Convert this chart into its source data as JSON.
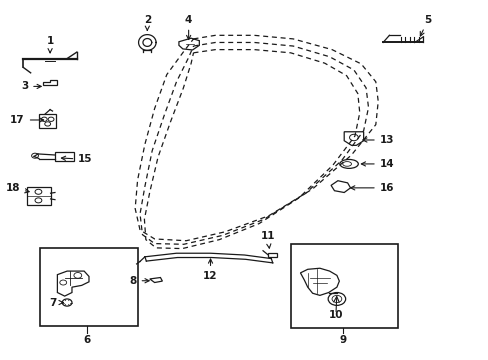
{
  "bg_color": "#ffffff",
  "line_color": "#1a1a1a",
  "fig_width": 4.89,
  "fig_height": 3.6,
  "dpi": 100,
  "door_outer": {
    "x": [
      0.395,
      0.44,
      0.52,
      0.6,
      0.68,
      0.74,
      0.77,
      0.775,
      0.77,
      0.72,
      0.64,
      0.55,
      0.46,
      0.38,
      0.315,
      0.285,
      0.275,
      0.28,
      0.295,
      0.315,
      0.34,
      0.375,
      0.395
    ],
    "y": [
      0.895,
      0.905,
      0.905,
      0.895,
      0.865,
      0.825,
      0.775,
      0.72,
      0.655,
      0.57,
      0.475,
      0.4,
      0.355,
      0.33,
      0.335,
      0.36,
      0.42,
      0.5,
      0.6,
      0.7,
      0.795,
      0.86,
      0.895
    ]
  },
  "door_mid": {
    "x": [
      0.395,
      0.44,
      0.52,
      0.6,
      0.675,
      0.725,
      0.75,
      0.755,
      0.745,
      0.7,
      0.625,
      0.54,
      0.455,
      0.375,
      0.315,
      0.29,
      0.285,
      0.295,
      0.31,
      0.335,
      0.36,
      0.385,
      0.395
    ],
    "y": [
      0.875,
      0.885,
      0.885,
      0.875,
      0.845,
      0.808,
      0.758,
      0.703,
      0.638,
      0.555,
      0.462,
      0.39,
      0.345,
      0.32,
      0.322,
      0.347,
      0.405,
      0.482,
      0.582,
      0.682,
      0.775,
      0.843,
      0.875
    ]
  },
  "door_inner": {
    "x": [
      0.395,
      0.44,
      0.52,
      0.595,
      0.665,
      0.71,
      0.733,
      0.737,
      0.727,
      0.682,
      0.612,
      0.53,
      0.448,
      0.372,
      0.318,
      0.297,
      0.294,
      0.305,
      0.322,
      0.348,
      0.374,
      0.39,
      0.395
    ],
    "y": [
      0.856,
      0.865,
      0.865,
      0.856,
      0.827,
      0.792,
      0.742,
      0.688,
      0.623,
      0.542,
      0.45,
      0.378,
      0.333,
      0.308,
      0.31,
      0.333,
      0.39,
      0.466,
      0.564,
      0.664,
      0.757,
      0.826,
      0.856
    ]
  }
}
